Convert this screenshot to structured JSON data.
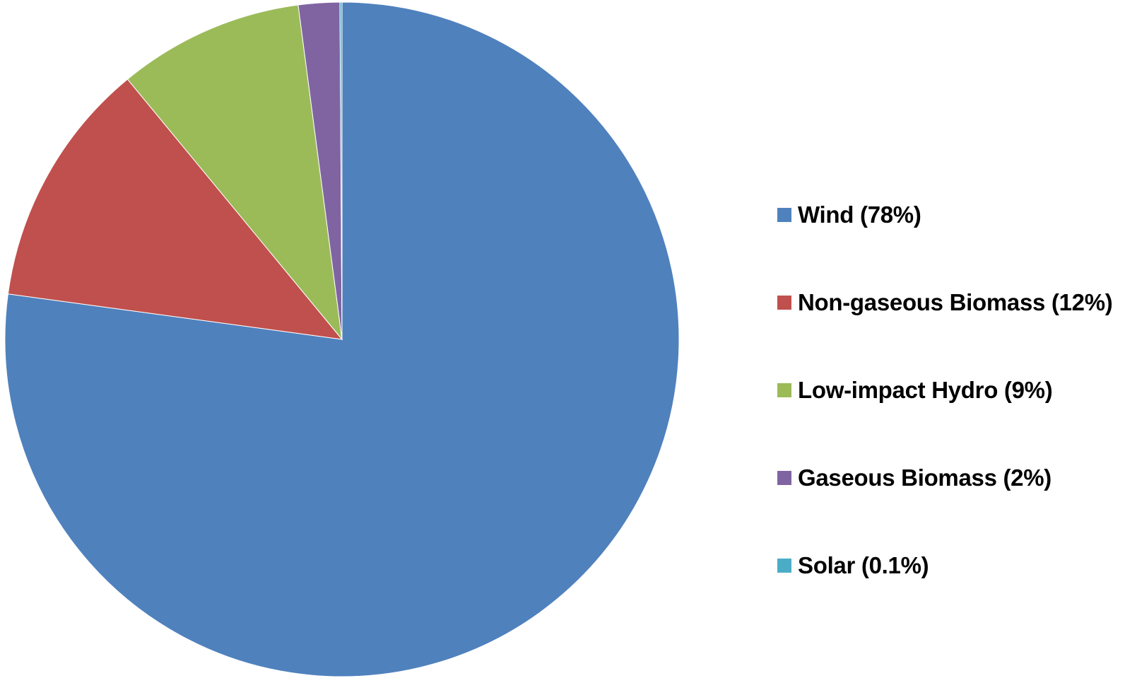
{
  "chart_data": {
    "type": "pie",
    "title": "",
    "legend_position": "right",
    "series": [
      {
        "label": "Wind (78%)",
        "value": 78,
        "color": "#4F81BD"
      },
      {
        "label": "Non-gaseous Biomass (12%)",
        "value": 12,
        "color": "#C0504D"
      },
      {
        "label": "Low-impact Hydro (9%)",
        "value": 9,
        "color": "#9BBB59"
      },
      {
        "label": "Gaseous Biomass (2%)",
        "value": 2,
        "color": "#8064A2"
      },
      {
        "label": "Solar (0.1%)",
        "value": 0.1,
        "color": "#4BACC6"
      }
    ]
  }
}
